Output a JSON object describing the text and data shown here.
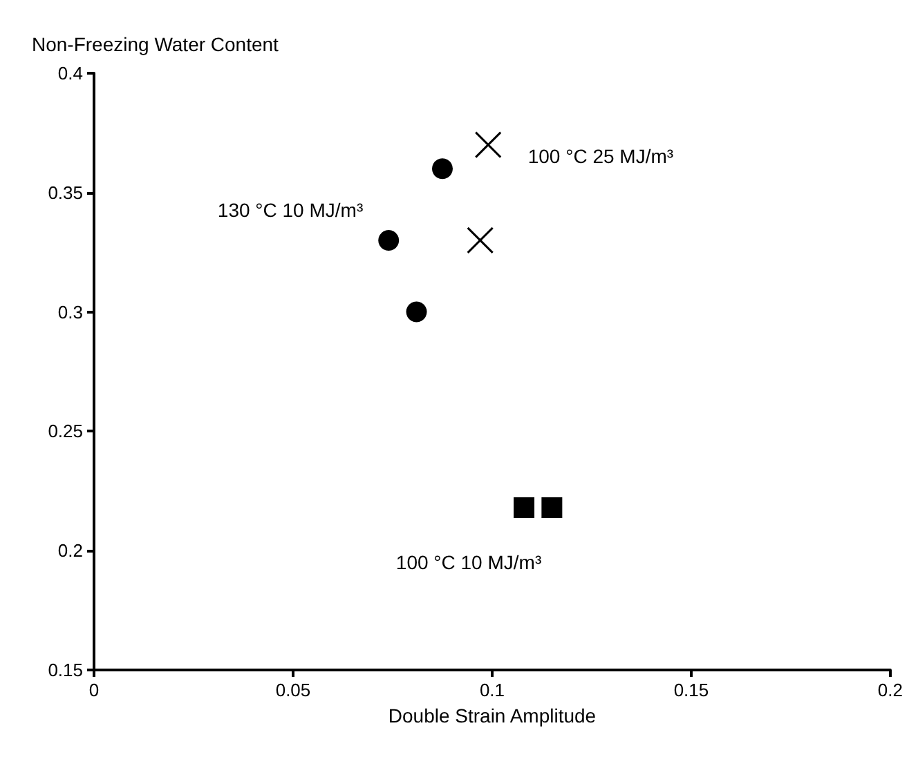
{
  "chart_data": {
    "type": "scatter",
    "xlabel": "Double Strain Amplitude",
    "ylabel": "Non-Freezing Water Content",
    "xlim": [
      0,
      0.2
    ],
    "xticks": [
      0,
      0.05,
      0.1,
      0.15,
      0.2
    ],
    "ylim": [
      0.15,
      0.4
    ],
    "yticks": [
      0.15,
      0.2,
      0.25,
      0.3,
      0.35,
      0.4
    ],
    "grid": false,
    "legend": false,
    "series": [
      {
        "name": "130 °C 10 MJ/m³",
        "color": "#000000",
        "marker": "circle",
        "x": [
          0.074,
          0.0875,
          0.081
        ],
        "values": [
          0.33,
          0.36,
          0.3
        ]
      },
      {
        "name": "100 °C 25 MJ/m³",
        "color": "#000000",
        "marker": "cross",
        "x": [
          0.099,
          0.097
        ],
        "values": [
          0.37,
          0.33
        ]
      },
      {
        "name": "100 °C 10 MJ/m³",
        "color": "#000000",
        "marker": "square",
        "x": [
          0.108,
          0.115
        ],
        "values": [
          0.218,
          0.218
        ]
      }
    ]
  }
}
